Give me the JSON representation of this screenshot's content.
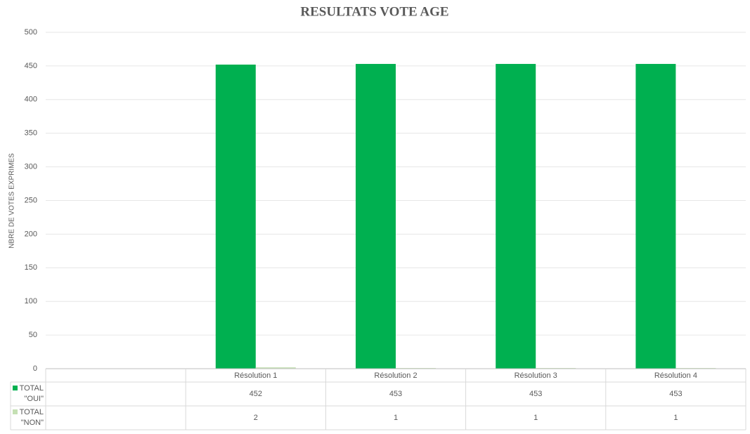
{
  "chart_data": {
    "type": "bar",
    "title": "RESULTATS VOTE AGE",
    "y_label": "NBRE DE VOTES EXPRIMES",
    "categories": [
      null,
      "Résolution 1",
      "Résolution 2",
      "Résolution 3",
      "Résolution 4"
    ],
    "series": [
      {
        "name": "TOTAL \"OUI\"",
        "color": "#00b050",
        "values": [
          null,
          452,
          453,
          453,
          453
        ]
      },
      {
        "name": "TOTAL \"NON\"",
        "color": "#c5e0b4",
        "values": [
          null,
          2,
          1,
          1,
          1
        ]
      }
    ],
    "ylim": [
      0,
      500
    ],
    "yticks": [
      0,
      50,
      100,
      150,
      200,
      250,
      300,
      350,
      400,
      450,
      500
    ],
    "grid": true,
    "data_table": true
  }
}
